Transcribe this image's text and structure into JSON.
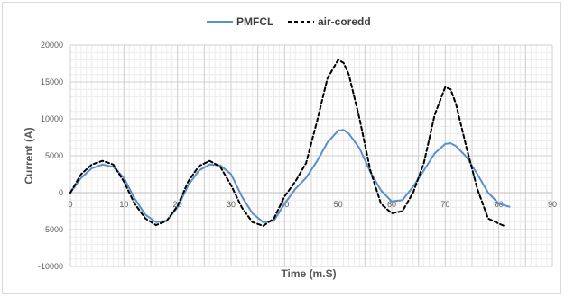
{
  "chart_data": {
    "type": "line",
    "title": "",
    "xlabel": "Time (m.S)",
    "ylabel": "Current (A)",
    "xlim": [
      0,
      90
    ],
    "ylim": [
      -10000,
      20000
    ],
    "x_ticks": [
      0,
      10,
      20,
      30,
      40,
      50,
      60,
      70,
      80,
      90
    ],
    "y_ticks": [
      -10000,
      -5000,
      0,
      5000,
      10000,
      15000,
      20000
    ],
    "x_tick_labels": [
      "0",
      "10",
      "20",
      "30",
      "40",
      "50",
      "60",
      "70",
      "80",
      "90"
    ],
    "y_tick_labels": [
      "-10000",
      "-5000",
      "0",
      "5000",
      "10000",
      "15000",
      "20000"
    ],
    "grid": true,
    "legend_position": "top",
    "series": [
      {
        "name": "PMFCL",
        "color": "#5b8fc9",
        "style": "solid",
        "points": [
          [
            0,
            0
          ],
          [
            2,
            2000
          ],
          [
            4,
            3300
          ],
          [
            6,
            3800
          ],
          [
            8,
            3500
          ],
          [
            10,
            2000
          ],
          [
            12,
            -800
          ],
          [
            14,
            -3000
          ],
          [
            16,
            -4000
          ],
          [
            18,
            -3800
          ],
          [
            20,
            -2000
          ],
          [
            22,
            1000
          ],
          [
            24,
            3000
          ],
          [
            26,
            3800
          ],
          [
            28,
            3700
          ],
          [
            30,
            2500
          ],
          [
            32,
            -500
          ],
          [
            34,
            -2800
          ],
          [
            36,
            -4000
          ],
          [
            38,
            -3800
          ],
          [
            40,
            -1500
          ],
          [
            42,
            500
          ],
          [
            44,
            2000
          ],
          [
            46,
            4200
          ],
          [
            48,
            6800
          ],
          [
            50,
            8400
          ],
          [
            51,
            8500
          ],
          [
            52,
            8000
          ],
          [
            54,
            6000
          ],
          [
            56,
            2800
          ],
          [
            58,
            300
          ],
          [
            60,
            -1200
          ],
          [
            62,
            -1000
          ],
          [
            64,
            800
          ],
          [
            66,
            3000
          ],
          [
            68,
            5300
          ],
          [
            70,
            6600
          ],
          [
            71,
            6700
          ],
          [
            72,
            6300
          ],
          [
            74,
            4800
          ],
          [
            76,
            2500
          ],
          [
            78,
            0
          ],
          [
            80,
            -1500
          ],
          [
            82,
            -1900
          ]
        ]
      },
      {
        "name": "air-coredd",
        "color": "#000000",
        "style": "dashed",
        "points": [
          [
            0,
            0
          ],
          [
            2,
            2500
          ],
          [
            4,
            3800
          ],
          [
            6,
            4300
          ],
          [
            8,
            3800
          ],
          [
            10,
            1500
          ],
          [
            12,
            -1500
          ],
          [
            14,
            -3500
          ],
          [
            16,
            -4400
          ],
          [
            18,
            -3800
          ],
          [
            20,
            -1800
          ],
          [
            22,
            1500
          ],
          [
            24,
            3600
          ],
          [
            26,
            4300
          ],
          [
            28,
            3500
          ],
          [
            30,
            1000
          ],
          [
            32,
            -2000
          ],
          [
            34,
            -4000
          ],
          [
            36,
            -4500
          ],
          [
            38,
            -3500
          ],
          [
            40,
            -500
          ],
          [
            42,
            1500
          ],
          [
            44,
            4000
          ],
          [
            46,
            9500
          ],
          [
            48,
            15500
          ],
          [
            50,
            18000
          ],
          [
            51,
            17600
          ],
          [
            52,
            16000
          ],
          [
            54,
            10000
          ],
          [
            56,
            3000
          ],
          [
            58,
            -1500
          ],
          [
            60,
            -2800
          ],
          [
            62,
            -2500
          ],
          [
            64,
            0
          ],
          [
            66,
            4000
          ],
          [
            68,
            10500
          ],
          [
            70,
            14300
          ],
          [
            71,
            14000
          ],
          [
            72,
            12000
          ],
          [
            74,
            6000
          ],
          [
            76,
            500
          ],
          [
            78,
            -3500
          ],
          [
            80,
            -4200
          ],
          [
            81,
            -4500
          ]
        ]
      }
    ]
  }
}
